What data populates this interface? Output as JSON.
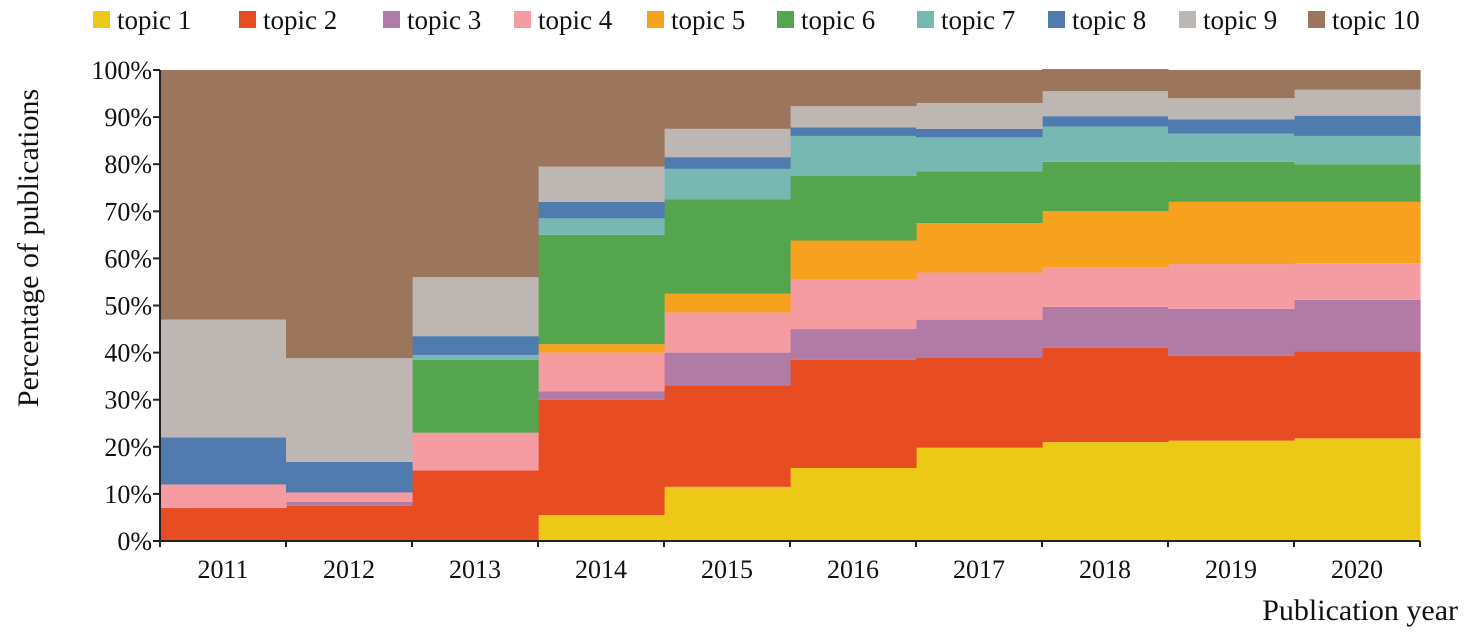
{
  "chart_data": {
    "type": "area",
    "stacked": true,
    "stepped": true,
    "normalized_percent": true,
    "title": "",
    "xlabel": "Publication year",
    "ylabel": "Percentage of publications",
    "categories": [
      "2011",
      "2012",
      "2013",
      "2014",
      "2015",
      "2016",
      "2017",
      "2018",
      "2019",
      "2020"
    ],
    "ylim": [
      0,
      100
    ],
    "yticks": [
      "0%",
      "10%",
      "20%",
      "30%",
      "40%",
      "50%",
      "60%",
      "70%",
      "80%",
      "90%",
      "100%"
    ],
    "legend_position": "top",
    "grid": false,
    "series": [
      {
        "name": "topic 1",
        "color": "#ECC917",
        "values": [
          0,
          0,
          0,
          5.5,
          11.5,
          15.5,
          19.8,
          21.0,
          21.3,
          21.8
        ]
      },
      {
        "name": "topic 2",
        "color": "#E84C22",
        "values": [
          7,
          7.5,
          15,
          24.5,
          21.5,
          23.0,
          19.2,
          20.0,
          18.0,
          18.5
        ]
      },
      {
        "name": "topic 3",
        "color": "#B07BA4",
        "values": [
          0,
          0.8,
          0,
          1.8,
          7.0,
          6.5,
          8.0,
          8.7,
          10.0,
          10.9
        ]
      },
      {
        "name": "topic 4",
        "color": "#F59CA3",
        "values": [
          5,
          2.0,
          8,
          8.2,
          8.5,
          10.5,
          10.0,
          8.3,
          9.5,
          7.8
        ]
      },
      {
        "name": "topic 5",
        "color": "#F7A21E",
        "values": [
          0,
          0,
          0,
          1.8,
          4.0,
          8.3,
          10.5,
          12.0,
          13.2,
          13.0
        ]
      },
      {
        "name": "topic 6",
        "color": "#55A44E",
        "values": [
          0,
          0,
          15.5,
          23.2,
          20.0,
          13.7,
          11.0,
          10.5,
          8.5,
          8.0
        ]
      },
      {
        "name": "topic 7",
        "color": "#77B8B3",
        "values": [
          0,
          0,
          1,
          3.5,
          6.5,
          8.5,
          7.2,
          7.5,
          6.0,
          6.0
        ]
      },
      {
        "name": "topic 8",
        "color": "#4F7BAE",
        "values": [
          10,
          6.5,
          4,
          3.5,
          2.5,
          1.8,
          1.8,
          2.2,
          3.0,
          4.3
        ]
      },
      {
        "name": "topic 9",
        "color": "#BDB6B3",
        "values": [
          25,
          22,
          12.5,
          7.5,
          6.0,
          4.5,
          5.5,
          5.3,
          4.5,
          5.5
        ]
      },
      {
        "name": "topic 10",
        "color": "#9C765C",
        "values": [
          53,
          61.2,
          44,
          20.5,
          12.5,
          7.7,
          7.0,
          4.7,
          6.0,
          4.2
        ]
      }
    ]
  }
}
